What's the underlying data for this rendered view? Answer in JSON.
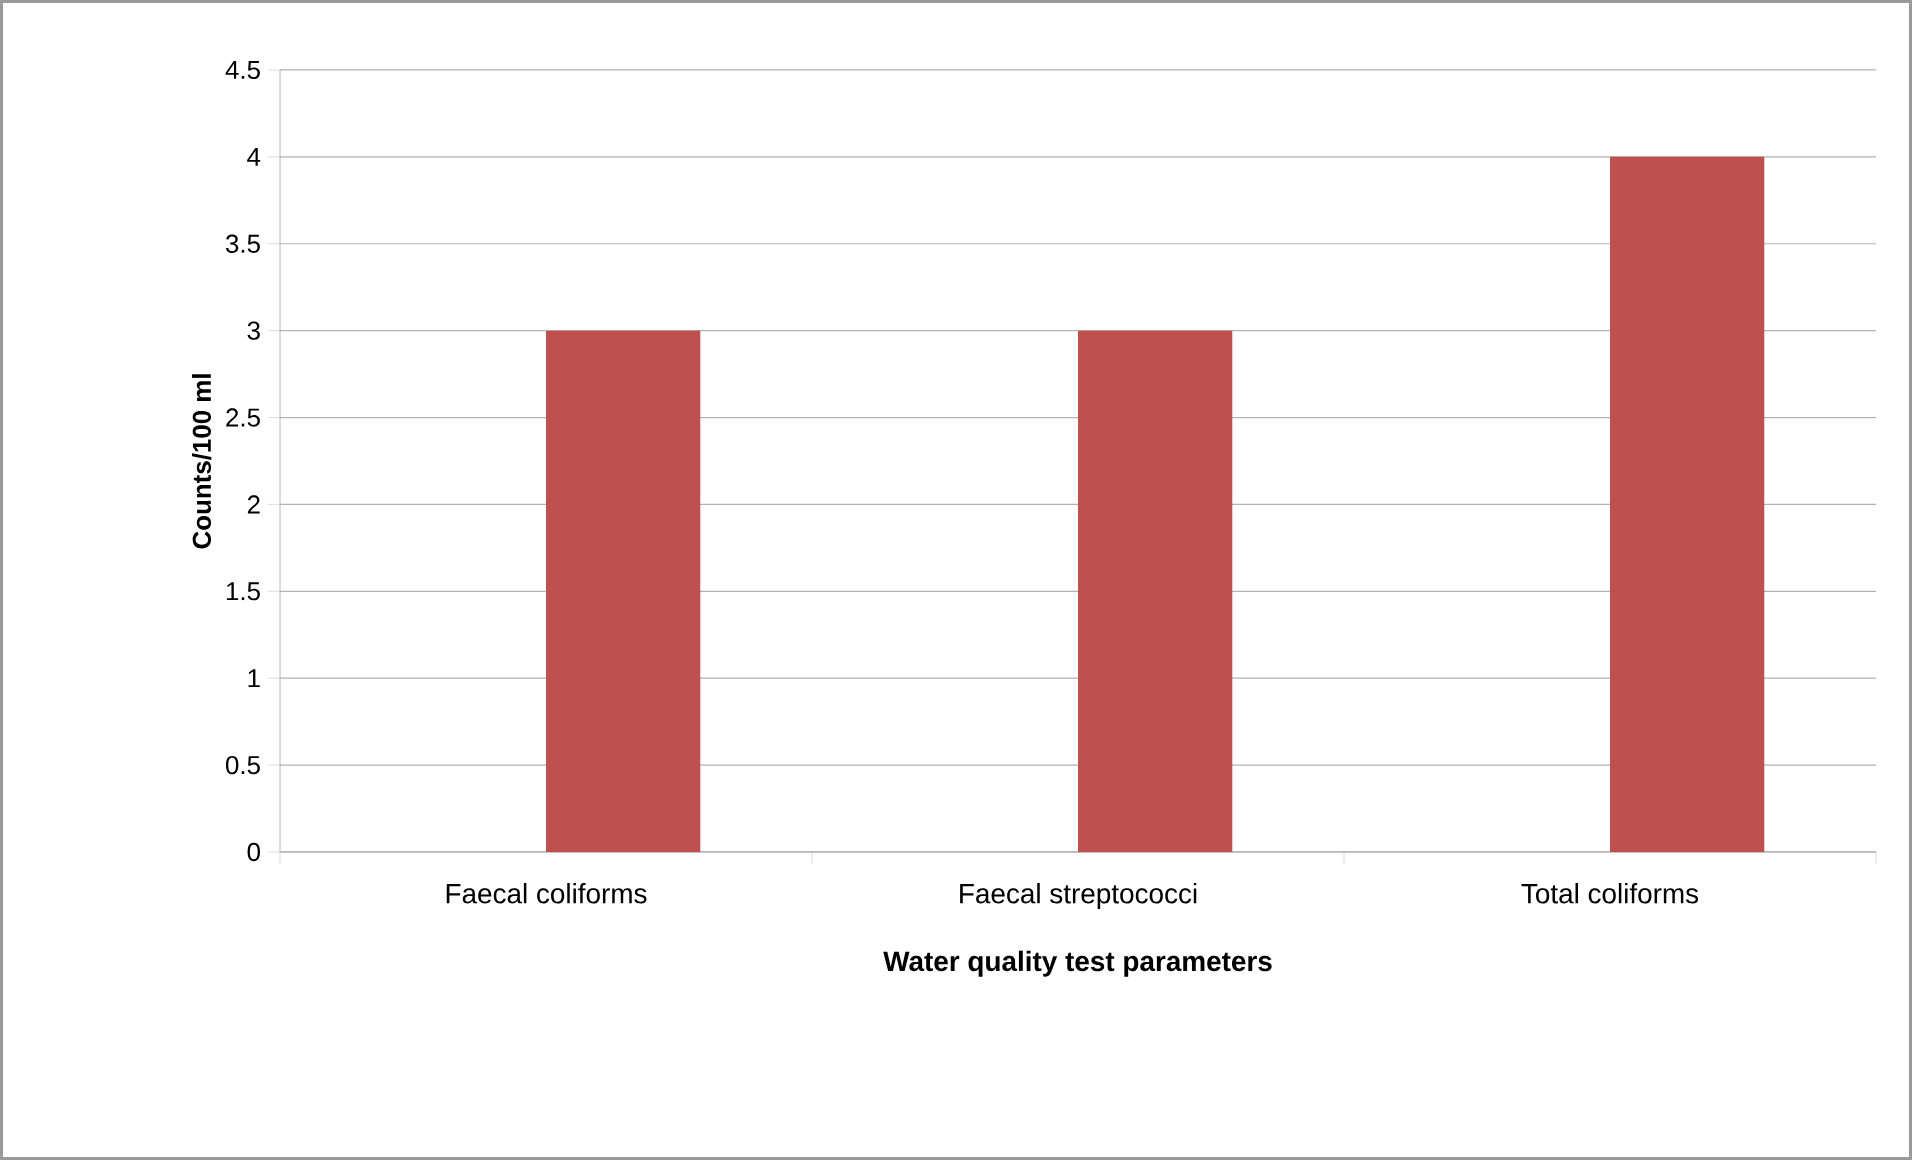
{
  "chart_data": {
    "type": "bar",
    "categories": [
      "Faecal coliforms",
      "Faecal streptococci",
      "Total coliforms"
    ],
    "values": [
      3,
      3,
      4
    ],
    "color": "#c0504d",
    "xlabel": "Water quality test parameters",
    "ylabel": "Counts/100 ml",
    "ylim": [
      0,
      4.5
    ],
    "yticks": [
      0,
      0.5,
      1,
      1.5,
      2,
      2.5,
      3,
      3.5,
      4,
      4.5
    ],
    "grid": "y"
  }
}
